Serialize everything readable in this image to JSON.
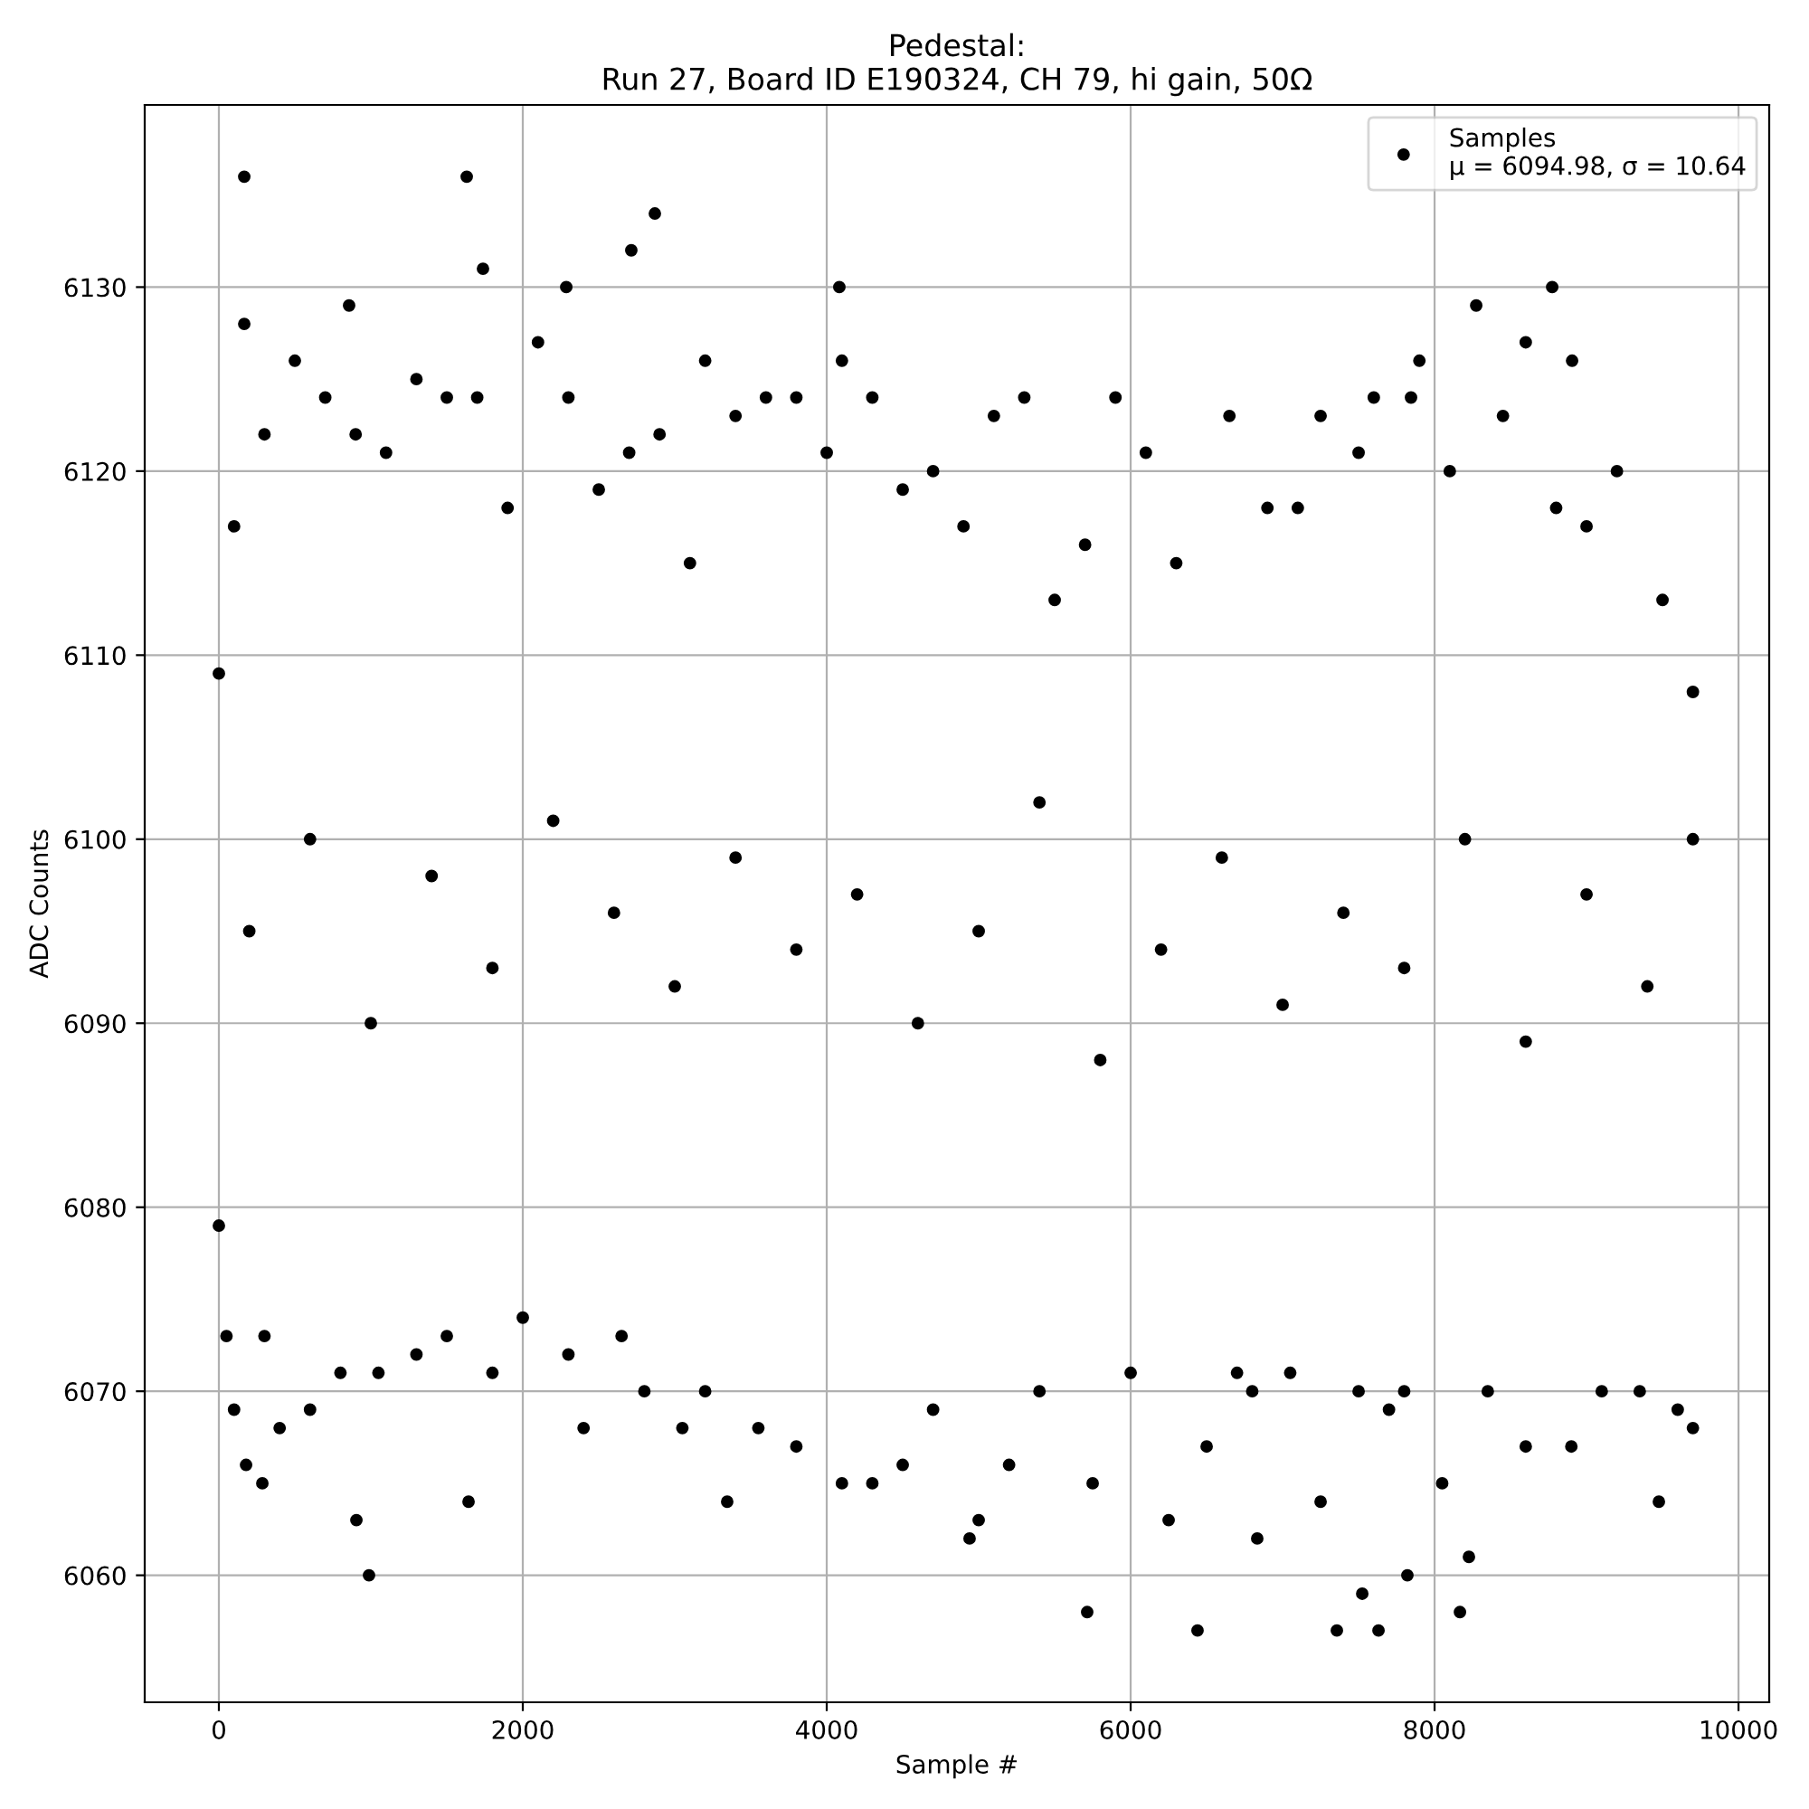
{
  "chart_data": {
    "type": "scatter",
    "title": "Pedestal:\nRun 27, Board ID E190324, CH 79, hi gain, 50Ω",
    "xlabel": "Sample #",
    "ylabel": "ADC Counts",
    "xlim": [
      -488,
      10202
    ],
    "ylim": [
      6053.1,
      6139.9
    ],
    "xticks": [
      0,
      2000,
      4000,
      6000,
      8000,
      10000
    ],
    "yticks": [
      6060,
      6070,
      6080,
      6090,
      6100,
      6110,
      6120,
      6130
    ],
    "grid": true,
    "legend": "top right",
    "marker": "circle",
    "series": [
      {
        "name": "Samples\nμ = 6094.98, σ = 10.64",
        "color": "#000000",
        "x": [
          167,
          167,
          179,
          286,
          905,
          988,
          857,
          1631,
          1643,
          1738,
          2286,
          2869,
          2714,
          3345,
          4083,
          4940,
          5714,
          6440,
          6833,
          7357,
          7524,
          7631,
          7821,
          8167,
          8226,
          8274,
          8774,
          8905,
          9476,
          7845,
          0,
          100,
          300,
          500,
          700,
          900,
          1100,
          1300,
          1500,
          1700,
          1900,
          2100,
          2300,
          2500,
          2700,
          2900,
          3100,
          3200,
          3400,
          3600,
          3800,
          4000,
          4100,
          4300,
          4500,
          4700,
          4900,
          5100,
          5300,
          5500,
          5700,
          5900,
          6100,
          6300,
          6650,
          6900,
          7100,
          7250,
          7500,
          7600,
          7900,
          8100,
          8450,
          8600,
          8800,
          9000,
          9200,
          9500,
          9700,
          0,
          50,
          100,
          300,
          400,
          600,
          800,
          1050,
          1300,
          1500,
          1800,
          2000,
          2300,
          2400,
          2650,
          2800,
          3050,
          3200,
          3550,
          3800,
          4100,
          4300,
          4500,
          4700,
          5000,
          5200,
          5400,
          5750,
          6000,
          6250,
          6500,
          6700,
          6800,
          7050,
          7250,
          7500,
          7700,
          7800,
          8050,
          8350,
          8600,
          8900,
          9100,
          9350,
          9600,
          9700,
          200,
          600,
          1000,
          1400,
          1800,
          2200,
          2600,
          3000,
          3400,
          3800,
          4200,
          4600,
          5000,
          5400,
          5800,
          6200,
          6600,
          7000,
          7400,
          7800,
          8200,
          8600,
          9000,
          9400,
          9700
        ],
        "values": [
          6136,
          6128,
          6066,
          6065,
          6063,
          6060,
          6129,
          6136,
          6064,
          6131,
          6130,
          6134,
          6132,
          6064,
          6130,
          6062,
          6058,
          6057,
          6062,
          6057,
          6059,
          6057,
          6060,
          6058,
          6061,
          6129,
          6130,
          6126,
          6064,
          6124,
          6109,
          6117,
          6122,
          6126,
          6124,
          6122,
          6121,
          6125,
          6124,
          6124,
          6118,
          6127,
          6124,
          6119,
          6121,
          6122,
          6115,
          6126,
          6123,
          6124,
          6124,
          6121,
          6126,
          6124,
          6119,
          6120,
          6117,
          6123,
          6124,
          6113,
          6116,
          6124,
          6121,
          6115,
          6123,
          6118,
          6118,
          6123,
          6121,
          6124,
          6126,
          6120,
          6123,
          6127,
          6118,
          6117,
          6120,
          6113,
          6108,
          6079,
          6073,
          6069,
          6073,
          6068,
          6069,
          6071,
          6071,
          6072,
          6073,
          6071,
          6074,
          6072,
          6068,
          6073,
          6070,
          6068,
          6070,
          6068,
          6067,
          6065,
          6065,
          6066,
          6069,
          6063,
          6066,
          6070,
          6065,
          6071,
          6063,
          6067,
          6071,
          6070,
          6071,
          6064,
          6070,
          6069,
          6070,
          6065,
          6070,
          6067,
          6067,
          6070,
          6070,
          6069,
          6068,
          6095,
          6100,
          6090,
          6098,
          6093,
          6101,
          6096,
          6092,
          6099,
          6094,
          6097,
          6090,
          6095,
          6102,
          6088,
          6094,
          6099,
          6091,
          6096,
          6093,
          6100,
          6089,
          6097,
          6092,
          6100
        ]
      }
    ]
  }
}
